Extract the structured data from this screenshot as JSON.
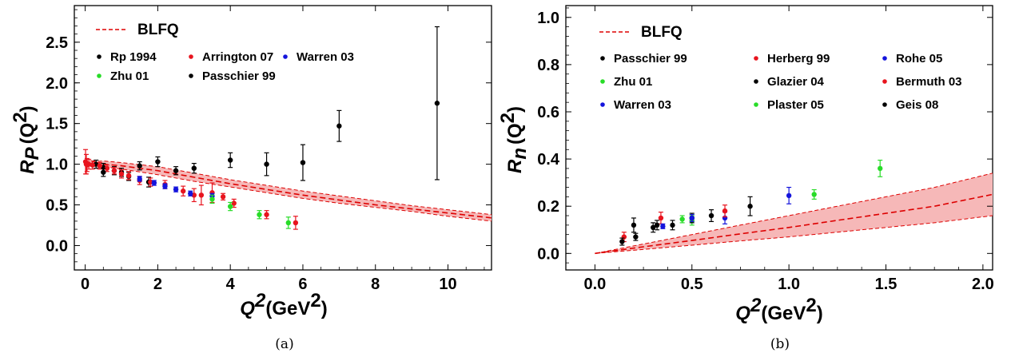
{
  "chart_data": [
    {
      "type": "scatter",
      "panel_label": "(a)",
      "ylabel_main": "R",
      "ylabel_sub": "P",
      "ylabel_arg": "(Q",
      "ylabel_arg_sup": "2",
      "ylabel_arg_close": ")",
      "xlabel_main": "Q",
      "xlabel_sup": "2",
      "xlabel_unit": "(GeV",
      "xlabel_unit_sup": "2",
      "xlabel_unit_close": ")",
      "xlim": [
        -0.3,
        11.2
      ],
      "ylim": [
        -0.3,
        2.95
      ],
      "xticks": [
        0,
        2,
        4,
        6,
        8,
        10
      ],
      "xtick_labels": [
        "0",
        "2",
        "4",
        "6",
        "8",
        "10"
      ],
      "yticks": [
        0.0,
        0.5,
        1.0,
        1.5,
        2.0,
        2.5
      ],
      "ytick_labels": [
        "0.0",
        "0.5",
        "1.0",
        "1.5",
        "2.0",
        "2.5"
      ],
      "legend_position": "top-left",
      "band": {
        "name": "BLFQ",
        "color": "#dd0000",
        "fill": "#f6b8b8",
        "x": [
          0,
          0.5,
          1,
          2,
          3,
          4,
          5,
          6,
          7,
          8,
          9,
          10,
          11.2
        ],
        "center": [
          1.0,
          1.0,
          0.98,
          0.92,
          0.84,
          0.76,
          0.69,
          0.62,
          0.56,
          0.5,
          0.45,
          0.4,
          0.34
        ],
        "upper": [
          1.02,
          1.04,
          1.02,
          0.97,
          0.89,
          0.81,
          0.74,
          0.67,
          0.61,
          0.55,
          0.49,
          0.44,
          0.38
        ],
        "lower": [
          0.98,
          0.97,
          0.94,
          0.87,
          0.79,
          0.72,
          0.65,
          0.58,
          0.52,
          0.47,
          0.42,
          0.36,
          0.3
        ]
      },
      "series": [
        {
          "name": "Rp 1994",
          "color": "#000000",
          "x": [
            0.3,
            0.5,
            0.8,
            1.0,
            1.2,
            1.5,
            1.75,
            2.0,
            2.5,
            3.0,
            4.0,
            5.0,
            6.0,
            7.0,
            9.7
          ],
          "y": [
            1.0,
            0.96,
            0.92,
            0.9,
            0.85,
            0.98,
            0.78,
            1.03,
            0.92,
            0.95,
            1.05,
            1.0,
            1.02,
            1.47,
            1.75
          ],
          "err": [
            0.05,
            0.05,
            0.05,
            0.05,
            0.05,
            0.05,
            0.06,
            0.06,
            0.05,
            0.06,
            0.09,
            0.14,
            0.22,
            0.19,
            0.94
          ]
        },
        {
          "name": "Arrington 07",
          "color": "#e8141e",
          "x": [
            0.01,
            0.03,
            0.05,
            0.1,
            0.2,
            0.4,
            0.6,
            0.8,
            1.0,
            1.2,
            1.5,
            1.8,
            2.2,
            2.7,
            3.0,
            3.2,
            3.5,
            3.8,
            4.1,
            5.0,
            5.8
          ],
          "y": [
            1.03,
            1.0,
            0.99,
            1.0,
            0.99,
            0.98,
            0.95,
            0.92,
            0.88,
            0.86,
            0.8,
            0.78,
            0.75,
            0.67,
            0.62,
            0.62,
            0.65,
            0.6,
            0.52,
            0.38,
            0.28
          ],
          "err": [
            0.15,
            0.12,
            0.08,
            0.06,
            0.05,
            0.04,
            0.04,
            0.04,
            0.05,
            0.05,
            0.05,
            0.05,
            0.05,
            0.06,
            0.08,
            0.12,
            0.12,
            0.04,
            0.05,
            0.05,
            0.08
          ]
        },
        {
          "name": "Warren 03",
          "color": "#1414dc",
          "x": [
            1.5,
            1.9,
            2.2,
            2.5,
            2.9,
            3.5
          ],
          "y": [
            0.82,
            0.77,
            0.73,
            0.69,
            0.64,
            0.61
          ],
          "err": [
            0.03,
            0.03,
            0.03,
            0.03,
            0.03,
            0.03
          ]
        },
        {
          "name": "Zhu 01",
          "color": "#28dc28",
          "x": [
            3.5,
            4.0,
            4.8,
            5.6
          ],
          "y": [
            0.57,
            0.48,
            0.38,
            0.28
          ],
          "err": [
            0.05,
            0.05,
            0.05,
            0.07
          ]
        },
        {
          "name": "Passchier 99",
          "color": "#000000",
          "x": [
            0.5
          ],
          "y": [
            0.9
          ],
          "err": [
            0.05
          ]
        }
      ],
      "legend": {
        "band_label": "BLFQ",
        "rows": [
          [
            {
              "label": "Rp 1994",
              "color": "#000000"
            },
            {
              "label": "Arrington 07",
              "color": "#e8141e"
            },
            {
              "label": "Warren 03",
              "color": "#1414dc"
            }
          ],
          [
            {
              "label": "Zhu 01",
              "color": "#28dc28"
            },
            {
              "label": "Passchier 99",
              "color": "#000000"
            }
          ]
        ]
      }
    },
    {
      "type": "scatter",
      "panel_label": "(b)",
      "ylabel_main": "R",
      "ylabel_sub": "n",
      "ylabel_arg": "(Q",
      "ylabel_arg_sup": "2",
      "ylabel_arg_close": ")",
      "xlabel_main": "Q",
      "xlabel_sup": "2",
      "xlabel_unit": "(GeV",
      "xlabel_unit_sup": "2",
      "xlabel_unit_close": ")",
      "xlim": [
        -0.15,
        2.05
      ],
      "ylim": [
        -0.07,
        1.05
      ],
      "xticks": [
        0.0,
        0.5,
        1.0,
        1.5,
        2.0
      ],
      "xtick_labels": [
        "0.0",
        "0.5",
        "1.0",
        "1.5",
        "2.0"
      ],
      "yticks": [
        0.0,
        0.2,
        0.4,
        0.6,
        0.8,
        1.0
      ],
      "ytick_labels": [
        "0.0",
        "0.2",
        "0.4",
        "0.6",
        "0.8",
        "1.0"
      ],
      "legend_position": "top-left",
      "band": {
        "name": "BLFQ",
        "color": "#dd0000",
        "fill": "#f6b8b8",
        "x": [
          0,
          0.25,
          0.5,
          0.75,
          1.0,
          1.25,
          1.5,
          1.75,
          2.05
        ],
        "center": [
          0,
          0.028,
          0.055,
          0.083,
          0.11,
          0.14,
          0.17,
          0.2,
          0.25
        ],
        "upper": [
          0,
          0.04,
          0.08,
          0.12,
          0.16,
          0.2,
          0.24,
          0.28,
          0.34
        ],
        "lower": [
          0,
          0.017,
          0.035,
          0.053,
          0.07,
          0.09,
          0.11,
          0.13,
          0.16
        ]
      },
      "series": [
        {
          "name": "Passchier 99",
          "color": "#000000",
          "x": [
            0.21
          ],
          "y": [
            0.07
          ],
          "err": [
            0.015
          ]
        },
        {
          "name": "Herberg 99",
          "color": "#e8141e",
          "x": [
            0.15,
            0.34
          ],
          "y": [
            0.07,
            0.15
          ],
          "err": [
            0.02,
            0.025
          ]
        },
        {
          "name": "Rohe 05",
          "color": "#1414dc",
          "x": [
            0.67
          ],
          "y": [
            0.15
          ],
          "err": [
            0.025
          ]
        },
        {
          "name": "Zhu 01",
          "color": "#28dc28",
          "x": [
            0.5
          ],
          "y": [
            0.14
          ],
          "err": [
            0.02
          ]
        },
        {
          "name": "Glazier 04",
          "color": "#000000",
          "x": [
            0.14,
            0.2,
            0.3,
            0.4,
            0.5,
            0.6,
            0.8
          ],
          "y": [
            0.05,
            0.12,
            0.11,
            0.12,
            0.15,
            0.16,
            0.2
          ],
          "err": [
            0.015,
            0.03,
            0.02,
            0.02,
            0.02,
            0.025,
            0.04
          ]
        },
        {
          "name": "Bermuth 03",
          "color": "#e8141e",
          "x": [
            0.67
          ],
          "y": [
            0.18
          ],
          "err": [
            0.025
          ]
        },
        {
          "name": "Warren 03",
          "color": "#1414dc",
          "x": [
            0.35,
            0.5,
            1.0
          ],
          "y": [
            0.115,
            0.15,
            0.245
          ],
          "err": [
            0.01,
            0.015,
            0.035
          ]
        },
        {
          "name": "Plaster 05",
          "color": "#28dc28",
          "x": [
            0.45,
            1.13,
            1.47
          ],
          "y": [
            0.145,
            0.25,
            0.36
          ],
          "err": [
            0.015,
            0.02,
            0.035
          ]
        },
        {
          "name": "Geis 08",
          "color": "#000000",
          "x": [
            0.32
          ],
          "y": [
            0.12
          ],
          "err": [
            0.02
          ]
        }
      ],
      "legend": {
        "band_label": "BLFQ",
        "rows": [
          [
            {
              "label": "Passchier 99",
              "color": "#000000"
            },
            {
              "label": "Herberg 99",
              "color": "#e8141e"
            },
            {
              "label": "Rohe 05",
              "color": "#1414dc"
            }
          ],
          [
            {
              "label": "Zhu 01",
              "color": "#28dc28"
            },
            {
              "label": "Glazier 04",
              "color": "#000000"
            },
            {
              "label": "Bermuth 03",
              "color": "#e8141e"
            }
          ],
          [
            {
              "label": "Warren 03",
              "color": "#1414dc"
            },
            {
              "label": "Plaster 05",
              "color": "#28dc28"
            },
            {
              "label": "Geis 08",
              "color": "#000000"
            }
          ]
        ]
      }
    }
  ]
}
